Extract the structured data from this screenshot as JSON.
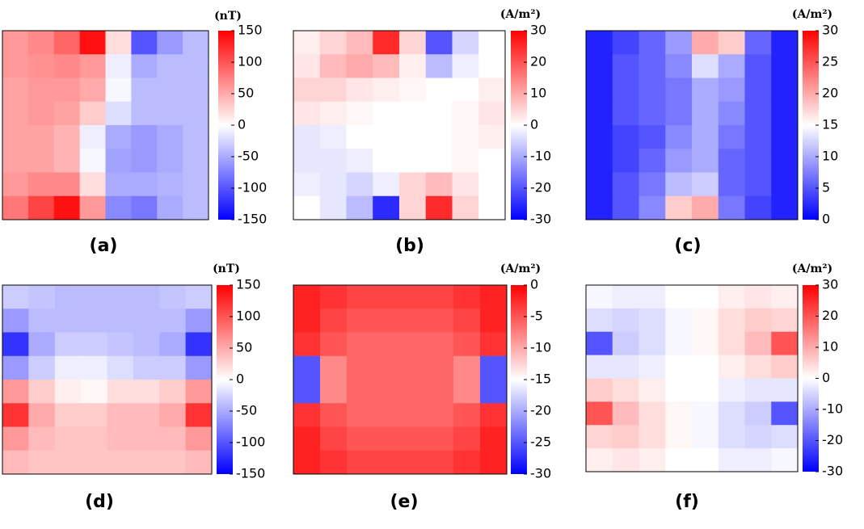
{
  "chart_data": [
    {
      "type": "heatmap",
      "label": "(a)",
      "unit": "(nT)",
      "colors": [
        "#0000ff",
        "#ffffff",
        "#ff0000"
      ],
      "zlim": [
        -150,
        150
      ],
      "zticks": [
        150,
        100,
        50,
        0,
        -50,
        -100,
        -150
      ],
      "z": [
        [
          60,
          70,
          90,
          140,
          20,
          -100,
          -60,
          -40
        ],
        [
          60,
          65,
          70,
          60,
          -10,
          -50,
          -40,
          -40
        ],
        [
          55,
          60,
          60,
          50,
          -5,
          -40,
          -40,
          -40
        ],
        [
          55,
          60,
          55,
          30,
          -20,
          -40,
          -40,
          -40
        ],
        [
          55,
          55,
          45,
          -10,
          -50,
          -60,
          -50,
          -40
        ],
        [
          55,
          55,
          45,
          -5,
          -55,
          -60,
          -50,
          -40
        ],
        [
          60,
          70,
          70,
          20,
          -50,
          -50,
          -45,
          -40
        ],
        [
          80,
          110,
          140,
          60,
          -70,
          -80,
          -50,
          -40
        ]
      ]
    },
    {
      "type": "heatmap",
      "label": "(b)",
      "unit": "(A/m²)",
      "colors": [
        "#0000ff",
        "#ffffff",
        "#ff0000"
      ],
      "zlim": [
        -30,
        30
      ],
      "zticks": [
        30,
        20,
        10,
        0,
        -10,
        -20,
        -30
      ],
      "z": [
        [
          2,
          5,
          8,
          25,
          5,
          -20,
          -5,
          0
        ],
        [
          3,
          8,
          10,
          8,
          2,
          -8,
          -2,
          0
        ],
        [
          5,
          5,
          3,
          2,
          1,
          0,
          0,
          2
        ],
        [
          3,
          2,
          1,
          0,
          0,
          0,
          1,
          3
        ],
        [
          -3,
          -2,
          0,
          0,
          0,
          0,
          1,
          2
        ],
        [
          -3,
          -3,
          -2,
          0,
          0,
          0,
          1,
          0
        ],
        [
          -2,
          -3,
          -5,
          -2,
          5,
          8,
          3,
          0
        ],
        [
          0,
          -3,
          -8,
          -25,
          5,
          25,
          5,
          0
        ]
      ]
    },
    {
      "type": "heatmap",
      "label": "(c)",
      "unit": "(A/m²)",
      "colors": [
        "#0000ff",
        "#ffffff",
        "#ff0000"
      ],
      "zlim": [
        0,
        30
      ],
      "zticks": [
        30,
        25,
        20,
        15,
        10,
        5,
        0
      ],
      "z": [
        [
          2,
          4,
          6,
          9,
          20,
          18,
          6,
          2
        ],
        [
          2,
          5,
          6,
          8,
          13,
          10,
          5,
          2
        ],
        [
          2,
          5,
          6,
          7,
          10,
          9,
          5,
          2
        ],
        [
          2,
          5,
          6,
          7,
          10,
          8,
          5,
          2
        ],
        [
          2,
          4,
          5,
          8,
          10,
          7,
          5,
          2
        ],
        [
          2,
          4,
          6,
          9,
          10,
          6,
          5,
          2
        ],
        [
          2,
          5,
          7,
          11,
          12,
          6,
          5,
          2
        ],
        [
          2,
          5,
          8,
          18,
          20,
          7,
          4,
          2
        ]
      ]
    },
    {
      "type": "heatmap",
      "label": "(d)",
      "unit": "(nT)",
      "colors": [
        "#0000ff",
        "#ffffff",
        "#ff0000"
      ],
      "zlim": [
        -150,
        150
      ],
      "zticks": [
        150,
        100,
        50,
        0,
        -50,
        -100,
        -150
      ],
      "z": [
        [
          -30,
          -35,
          -40,
          -40,
          -40,
          -40,
          -35,
          -30
        ],
        [
          -60,
          -40,
          -40,
          -40,
          -40,
          -40,
          -40,
          -60
        ],
        [
          -120,
          -50,
          -30,
          -30,
          -35,
          -40,
          -50,
          -120
        ],
        [
          -60,
          -30,
          -10,
          -10,
          -20,
          -30,
          -30,
          -60
        ],
        [
          60,
          30,
          10,
          5,
          20,
          20,
          30,
          60
        ],
        [
          120,
          50,
          30,
          30,
          40,
          40,
          50,
          120
        ],
        [
          60,
          40,
          35,
          35,
          40,
          40,
          40,
          60
        ],
        [
          40,
          35,
          35,
          35,
          35,
          35,
          35,
          40
        ]
      ]
    },
    {
      "type": "heatmap",
      "label": "(e)",
      "unit": "(A/m²)",
      "colors": [
        "#0000ff",
        "#ffffff",
        "#ff0000"
      ],
      "zlim": [
        -30,
        0
      ],
      "zticks": [
        0,
        -5,
        -10,
        -15,
        -20,
        -25,
        -30
      ],
      "z": [
        [
          -2,
          -3,
          -4,
          -4,
          -4,
          -4,
          -3,
          -2
        ],
        [
          -2,
          -4,
          -5,
          -5,
          -5,
          -5,
          -4,
          -2
        ],
        [
          -3,
          -5,
          -6,
          -6,
          -6,
          -6,
          -5,
          -3
        ],
        [
          -25,
          -8,
          -6,
          -6,
          -6,
          -6,
          -8,
          -25
        ],
        [
          -25,
          -8,
          -6,
          -6,
          -6,
          -6,
          -8,
          -25
        ],
        [
          -3,
          -5,
          -6,
          -6,
          -6,
          -6,
          -5,
          -3
        ],
        [
          -2,
          -4,
          -5,
          -5,
          -5,
          -5,
          -4,
          -2
        ],
        [
          -2,
          -3,
          -4,
          -4,
          -4,
          -4,
          -3,
          -2
        ]
      ]
    },
    {
      "type": "heatmap",
      "label": "(f)",
      "unit": "(A/m²)",
      "colors": [
        "#0000ff",
        "#ffffff",
        "#ff0000"
      ],
      "zlim": [
        -30,
        30
      ],
      "zticks": [
        30,
        20,
        10,
        0,
        -10,
        -20,
        -30
      ],
      "z": [
        [
          -1,
          -2,
          -2,
          0,
          0,
          2,
          3,
          2
        ],
        [
          -4,
          -5,
          -4,
          -1,
          1,
          4,
          6,
          5
        ],
        [
          -20,
          -6,
          -4,
          -1,
          1,
          4,
          8,
          20
        ],
        [
          -3,
          -3,
          -2,
          0,
          0,
          2,
          4,
          6
        ],
        [
          6,
          4,
          2,
          0,
          0,
          -2,
          -3,
          -3
        ],
        [
          20,
          8,
          4,
          1,
          -1,
          -4,
          -6,
          -20
        ],
        [
          5,
          6,
          4,
          1,
          -1,
          -4,
          -5,
          -4
        ],
        [
          2,
          3,
          2,
          0,
          0,
          -2,
          -2,
          -1
        ]
      ]
    }
  ]
}
